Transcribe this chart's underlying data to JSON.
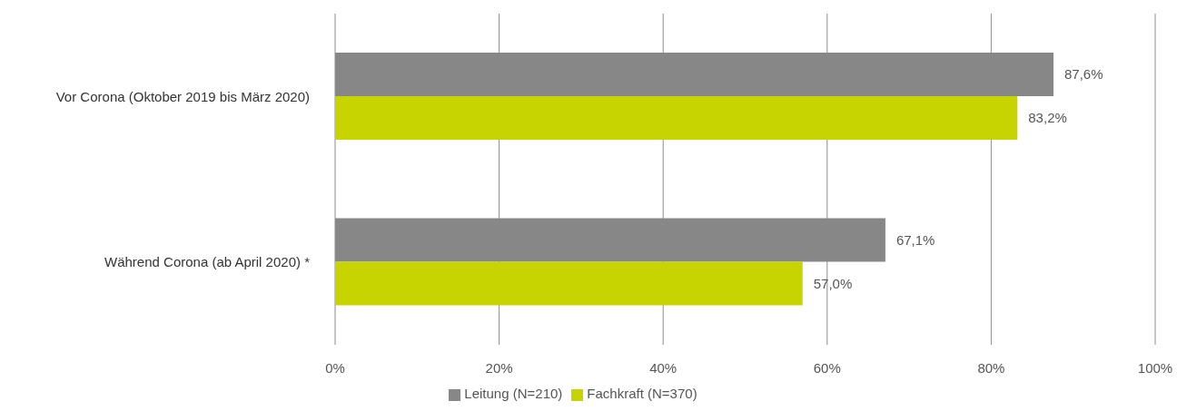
{
  "chart_data": {
    "type": "bar",
    "orientation": "horizontal",
    "categories": [
      "Vor Corona (Oktober 2019 bis März 2020)",
      "Während Corona (ab April 2020) *"
    ],
    "series": [
      {
        "name": "Leitung (N=210)",
        "color": "#878787",
        "values": [
          87.6,
          67.1
        ],
        "value_labels": [
          "87,6%",
          "67,1%"
        ]
      },
      {
        "name": "Fachkraft (N=370)",
        "color": "#c8d400",
        "values": [
          83.2,
          57.0
        ],
        "value_labels": [
          "83,2%",
          "57,0%"
        ]
      }
    ],
    "xlim": [
      0,
      100
    ],
    "xticks": [
      {
        "value": 0,
        "label": "0%"
      },
      {
        "value": 20,
        "label": "20%"
      },
      {
        "value": 40,
        "label": "40%"
      },
      {
        "value": 60,
        "label": "60%"
      },
      {
        "value": 80,
        "label": "80%"
      },
      {
        "value": 100,
        "label": "100%"
      }
    ],
    "grid": "x",
    "legend": "bottom"
  }
}
